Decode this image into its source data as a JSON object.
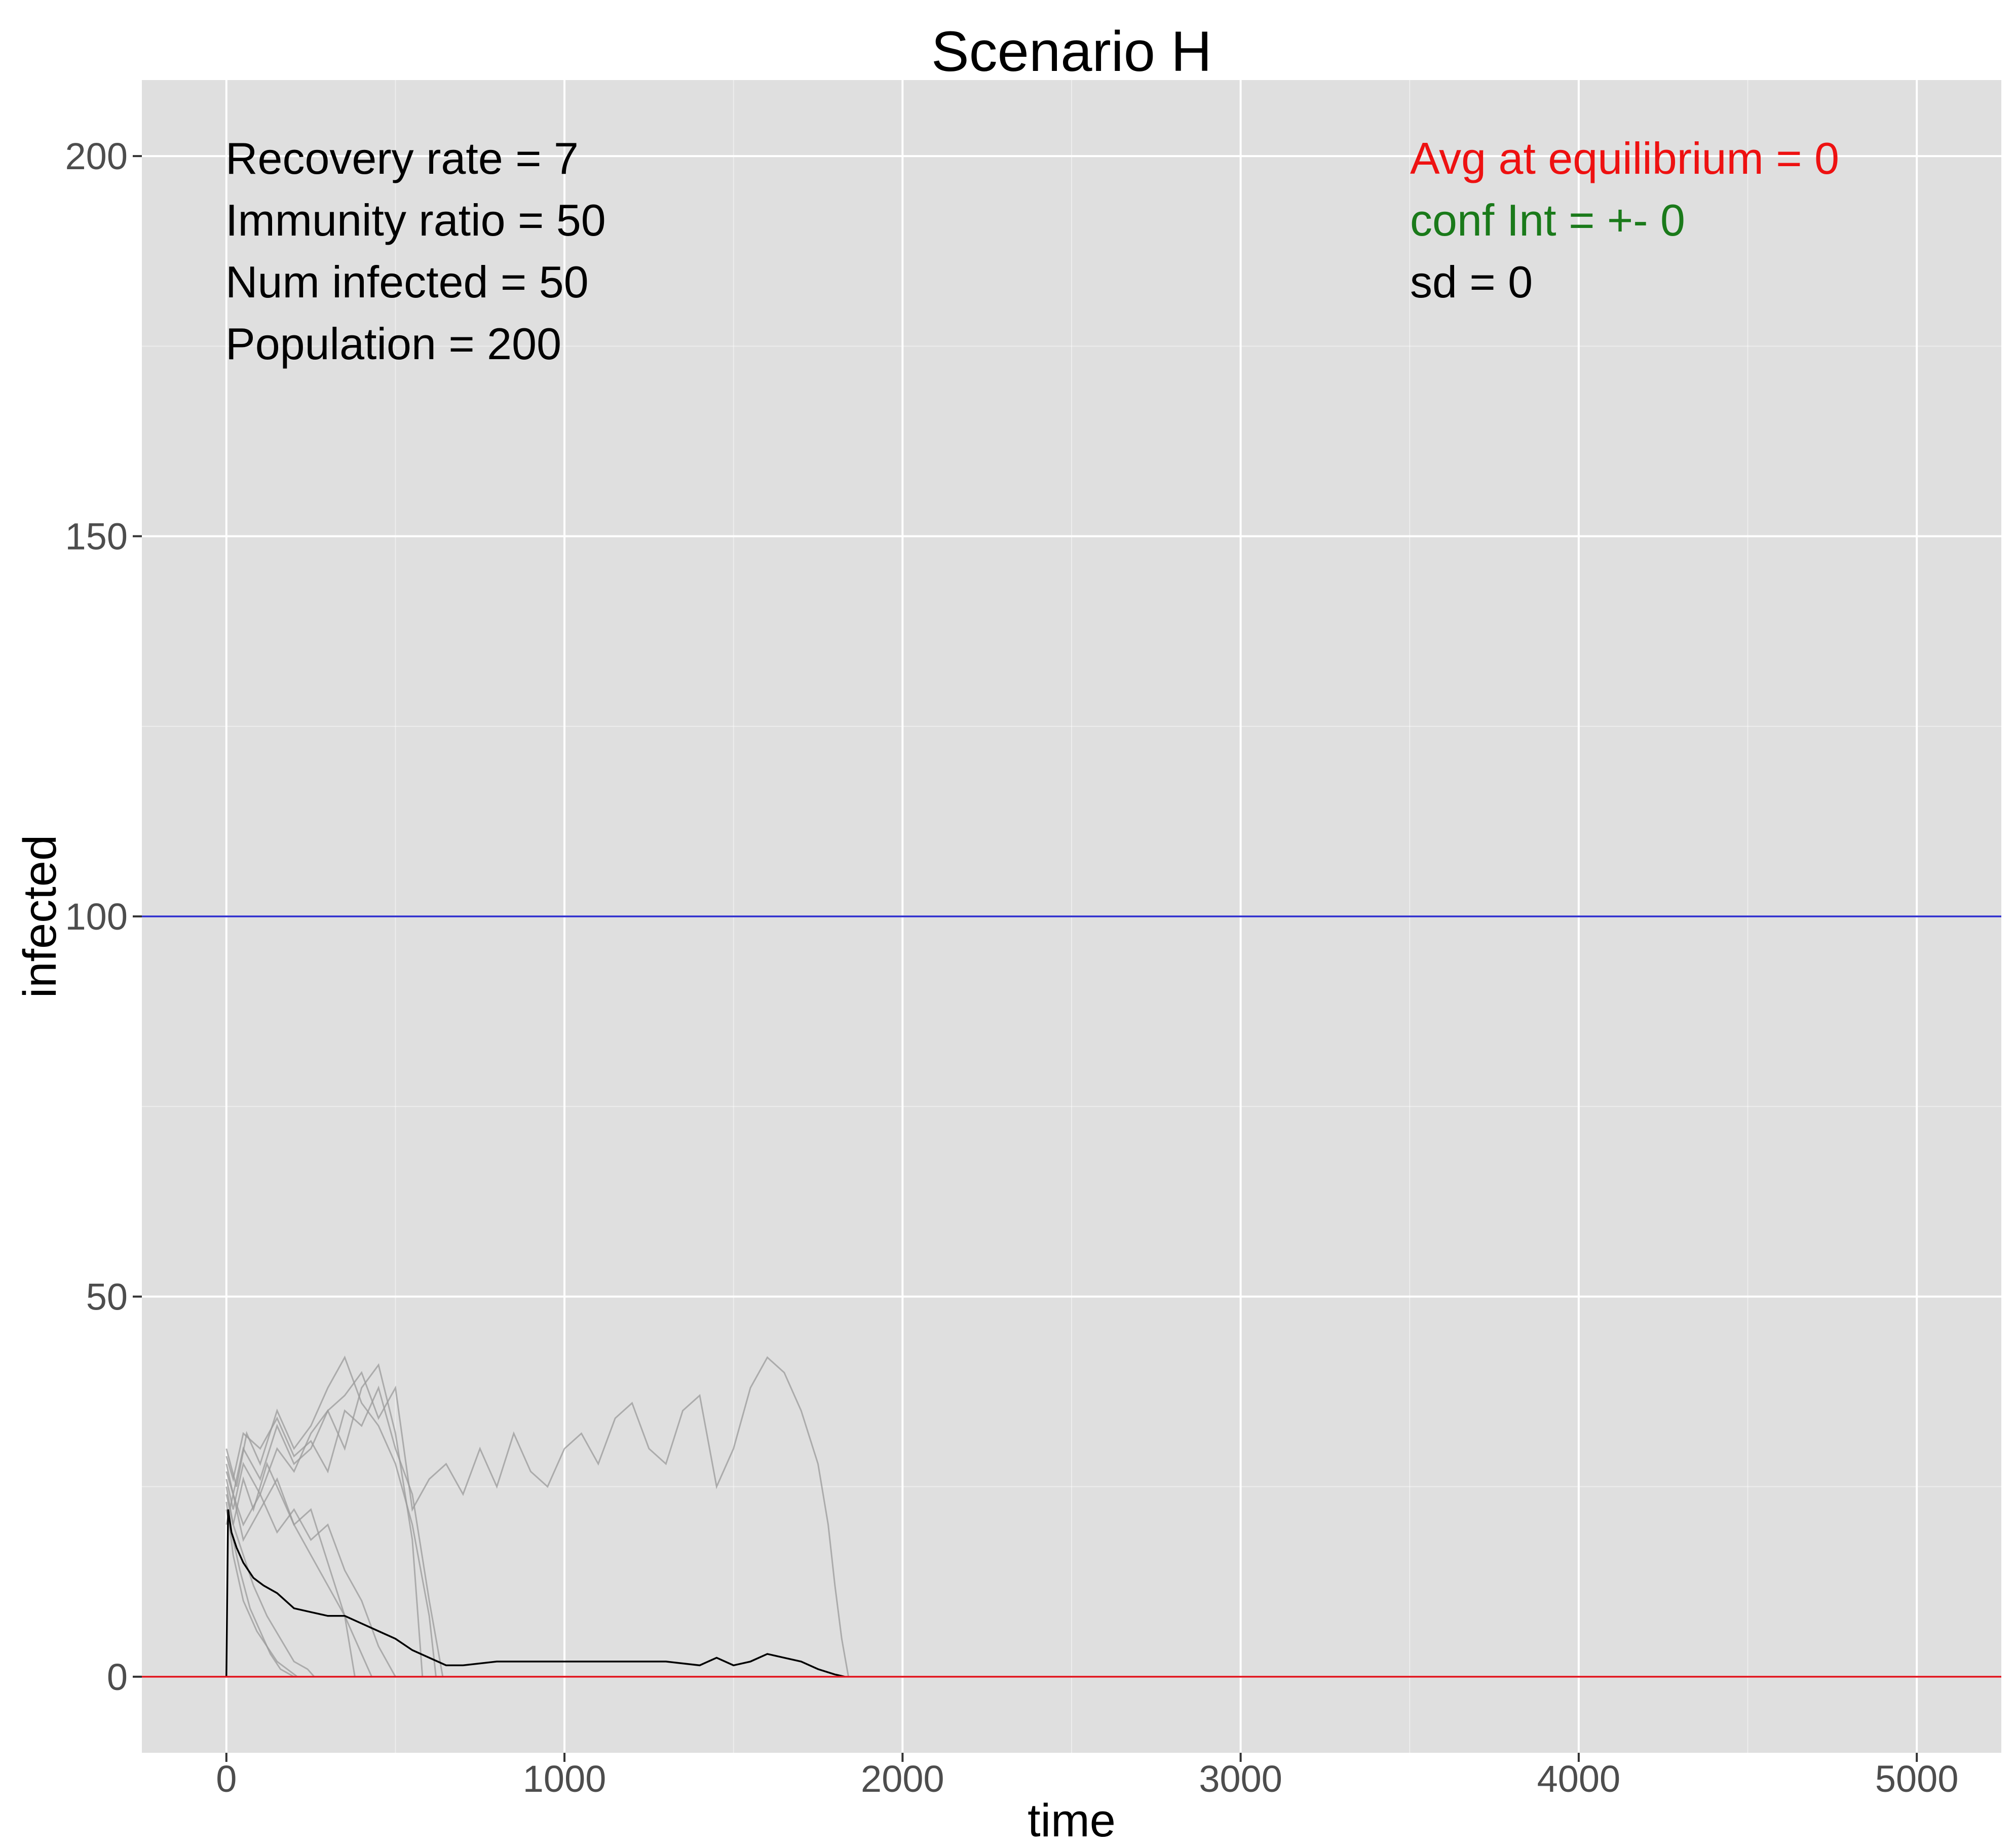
{
  "chart_data": {
    "type": "line",
    "title": "Scenario H",
    "xlabel": "time",
    "ylabel": "infected",
    "xlim": [
      -250,
      5250
    ],
    "ylim": [
      -10,
      210
    ],
    "grid": true,
    "legend": "none",
    "x_ticks": [
      0,
      1000,
      2000,
      3000,
      4000,
      5000
    ],
    "y_ticks": [
      0,
      50,
      100,
      150,
      200
    ],
    "colors": {
      "panel": "#dfdfdf",
      "grid": "#ffffff",
      "runs": "#9a9a9a",
      "mean": "#000000",
      "population_half": "#2b2bcc",
      "equilibrium": "#e0141e",
      "avg_text": "#ee1111",
      "conf_text": "#1a7a1a",
      "sd_text": "#000000"
    },
    "reference_lines": [
      {
        "y": 100,
        "color": "#2b2bcc"
      },
      {
        "y": 0,
        "color": "#e0141e"
      }
    ],
    "annotations_left": [
      "Recovery rate = 7",
      "Immunity ratio = 50",
      "Num infected = 50",
      "Population = 200"
    ],
    "annotations_right": [
      {
        "text": "Avg at equilibrium = 0",
        "color": "#ee1111"
      },
      {
        "text": "conf Int = +- 0",
        "color": "#1a7a1a"
      },
      {
        "text": "sd = 0",
        "color": "#000000"
      }
    ],
    "series": [
      {
        "role": "mean",
        "color": "#000000",
        "x": [
          0,
          5,
          15,
          30,
          50,
          80,
          110,
          150,
          200,
          250,
          300,
          350,
          400,
          450,
          500,
          550,
          600,
          650,
          700,
          800,
          900,
          1000,
          1100,
          1200,
          1300,
          1400,
          1450,
          1500,
          1550,
          1600,
          1650,
          1700,
          1750,
          1800,
          1830
        ],
        "y": [
          0,
          22,
          19,
          17,
          15,
          13,
          12,
          11,
          9,
          8.5,
          8,
          8,
          7,
          6,
          5,
          3.5,
          2.5,
          1.5,
          1.5,
          2,
          2,
          2,
          2,
          2,
          2,
          1.5,
          2.5,
          1.5,
          2,
          3,
          2.5,
          2,
          1,
          0.3,
          0
        ]
      },
      {
        "role": "run",
        "color": "#9a9a9a",
        "x": [
          0,
          20,
          50,
          100,
          150,
          200,
          250,
          300,
          350,
          400,
          450,
          500,
          550,
          600,
          650,
          700,
          750,
          800,
          850,
          900,
          950,
          1000,
          1050,
          1100,
          1150,
          1200,
          1250,
          1300,
          1350,
          1400,
          1450,
          1500,
          1550,
          1600,
          1650,
          1700,
          1750,
          1780,
          1800,
          1820,
          1840
        ],
        "y": [
          28,
          24,
          30,
          26,
          33,
          28,
          30,
          35,
          37,
          40,
          34,
          38,
          22,
          26,
          28,
          24,
          30,
          25,
          32,
          27,
          25,
          30,
          32,
          28,
          34,
          36,
          30,
          28,
          35,
          37,
          25,
          30,
          38,
          42,
          40,
          35,
          28,
          20,
          12,
          5,
          0
        ]
      },
      {
        "role": "run",
        "color": "#9a9a9a",
        "x": [
          0,
          30,
          60,
          100,
          150,
          200,
          250,
          300,
          350,
          400,
          450,
          500,
          550,
          600,
          620
        ],
        "y": [
          30,
          25,
          32,
          28,
          35,
          30,
          33,
          38,
          42,
          36,
          33,
          28,
          20,
          8,
          0
        ]
      },
      {
        "role": "run",
        "color": "#9a9a9a",
        "x": [
          0,
          20,
          50,
          100,
          150,
          200,
          250,
          300,
          350,
          400,
          450,
          500,
          550,
          580
        ],
        "y": [
          26,
          22,
          28,
          24,
          30,
          27,
          32,
          35,
          30,
          38,
          41,
          32,
          18,
          0
        ]
      },
      {
        "role": "run",
        "color": "#9a9a9a",
        "x": [
          0,
          20,
          50,
          80,
          120,
          160,
          200,
          250,
          300,
          350,
          380
        ],
        "y": [
          24,
          20,
          26,
          22,
          28,
          24,
          20,
          22,
          15,
          8,
          0
        ]
      },
      {
        "role": "run",
        "color": "#9a9a9a",
        "x": [
          0,
          20,
          40,
          70,
          100,
          130,
          160,
          200
        ],
        "y": [
          22,
          18,
          14,
          9,
          6,
          3,
          1,
          0
        ]
      },
      {
        "role": "run",
        "color": "#9a9a9a",
        "x": [
          0,
          20,
          50,
          80,
          120,
          160,
          200,
          240,
          260
        ],
        "y": [
          25,
          20,
          16,
          12,
          8,
          5,
          2,
          1,
          0
        ]
      },
      {
        "role": "run",
        "color": "#9a9a9a",
        "x": [
          0,
          20,
          50,
          100,
          150,
          200,
          250,
          300,
          350,
          400,
          450,
          500
        ],
        "y": [
          27,
          24,
          20,
          24,
          19,
          22,
          18,
          20,
          14,
          10,
          4,
          0
        ]
      },
      {
        "role": "run",
        "color": "#9a9a9a",
        "x": [
          0,
          20,
          50,
          100,
          150,
          200,
          250,
          300,
          350,
          400,
          430
        ],
        "y": [
          20,
          24,
          18,
          22,
          26,
          20,
          16,
          12,
          8,
          3,
          0
        ]
      },
      {
        "role": "run",
        "color": "#9a9a9a",
        "x": [
          0,
          20,
          50,
          90,
          120,
          150,
          180,
          210
        ],
        "y": [
          23,
          16,
          10,
          6,
          4,
          2,
          1,
          0
        ]
      },
      {
        "role": "run",
        "color": "#9a9a9a",
        "x": [
          0,
          20,
          50,
          100,
          150,
          200,
          250,
          300,
          350,
          400,
          450,
          500,
          550,
          600,
          640
        ],
        "y": [
          29,
          26,
          32,
          30,
          34,
          29,
          31,
          27,
          35,
          33,
          38,
          30,
          24,
          10,
          0
        ]
      }
    ]
  }
}
